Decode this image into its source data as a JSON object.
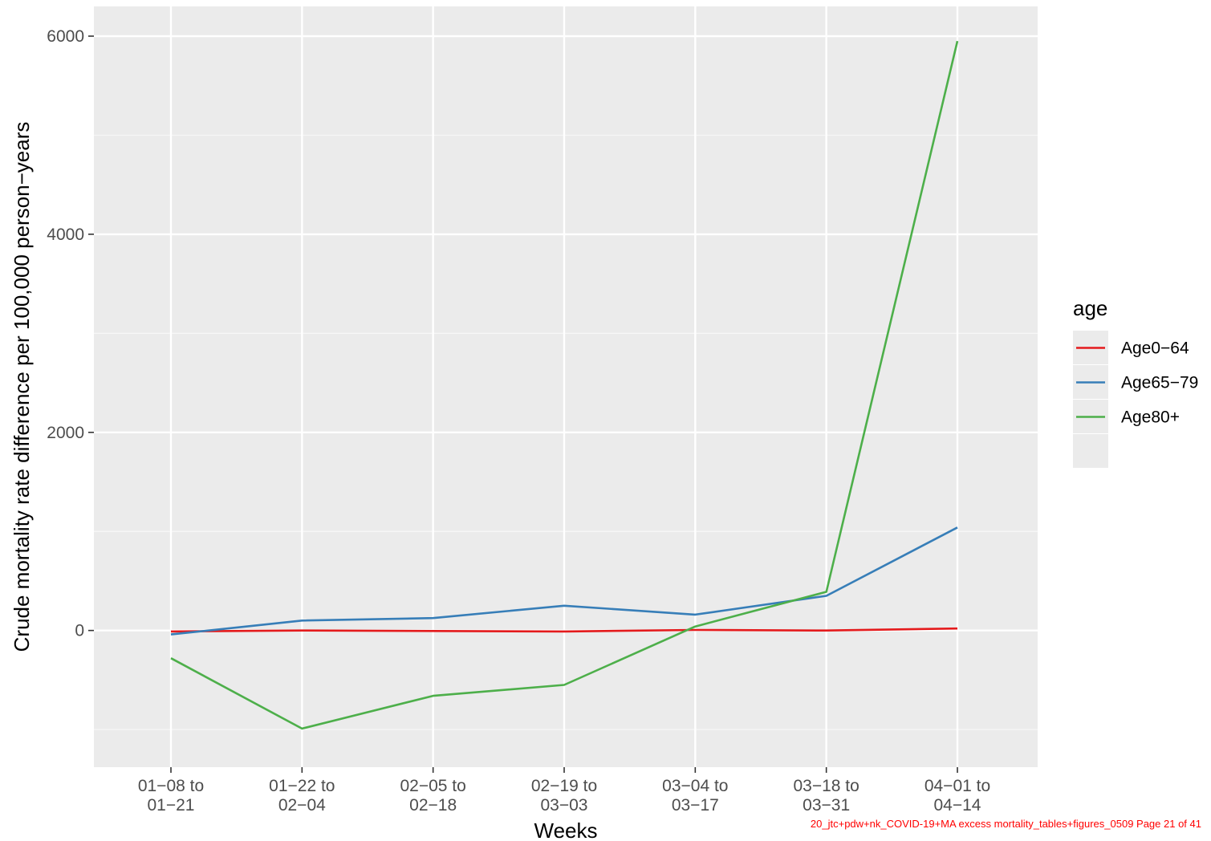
{
  "chart_data": {
    "type": "line",
    "title": "",
    "xlabel": "Weeks",
    "ylabel": "Crude mortality rate difference per 100,000 person−years",
    "categories": [
      [
        "01−08 to",
        "01−21"
      ],
      [
        "01−22 to",
        "02−04"
      ],
      [
        "02−05 to",
        "02−18"
      ],
      [
        "02−19 to",
        "03−03"
      ],
      [
        "03−04 to",
        "03−17"
      ],
      [
        "03−18 to",
        "03−31"
      ],
      [
        "04−01 to",
        "04−14"
      ]
    ],
    "ylim": [
      -1380,
      6300
    ],
    "yticks": [
      0,
      2000,
      4000,
      6000
    ],
    "grid": true,
    "legend": {
      "title": "age",
      "position": "right"
    },
    "series": [
      {
        "name": "Age0−64",
        "color": "#e41a1c",
        "values": [
          -10,
          0,
          -5,
          -10,
          5,
          0,
          20
        ]
      },
      {
        "name": "Age65−79",
        "color": "#377eb8",
        "values": [
          -40,
          100,
          125,
          250,
          160,
          350,
          1040
        ]
      },
      {
        "name": "Age80+",
        "color": "#4daf4a",
        "values": [
          -280,
          -990,
          -660,
          -550,
          40,
          390,
          5950
        ]
      }
    ]
  },
  "footer": "20_jtc+pdw+nk_COVID-19+MA excess mortality_tables+figures_0509 Page 21 of 41"
}
